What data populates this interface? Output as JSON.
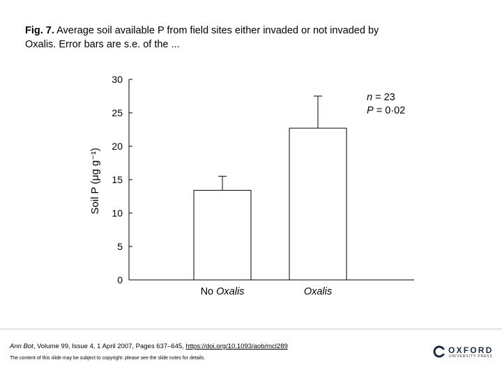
{
  "caption": {
    "label": "Fig. 7.",
    "text": " Average soil available P from field sites either invaded or not invaded by Oxalis. Error bars are s.e. of the ..."
  },
  "chart_data": {
    "type": "bar",
    "categories": [
      "No Oxalis",
      "Oxalis"
    ],
    "values": [
      13.4,
      22.7
    ],
    "error": [
      2.1,
      4.8
    ],
    "ylim": [
      0,
      30
    ],
    "yticks": [
      0,
      5,
      10,
      15,
      20,
      25,
      30
    ],
    "ylabel": "Soil P (μg g⁻¹)",
    "xlabel": "",
    "annotations": [
      "n = 23",
      "P = 0·02"
    ],
    "bar_color": "#ffffff",
    "edge_color": "#000000",
    "grid": false
  },
  "footer": {
    "journal": "Ann Bot",
    "citation": ", Volume 99, Issue 4, 1 April 2007, Pages 637–645, ",
    "doi": "https://doi.org/10.1093/aob/mcl289",
    "copyright": "The content of this slide may be subject to copyright: please see the slide notes for details."
  },
  "logo": {
    "name": "OXFORD",
    "sub": "UNIVERSITY PRESS",
    "color": "#1b2a3a"
  }
}
